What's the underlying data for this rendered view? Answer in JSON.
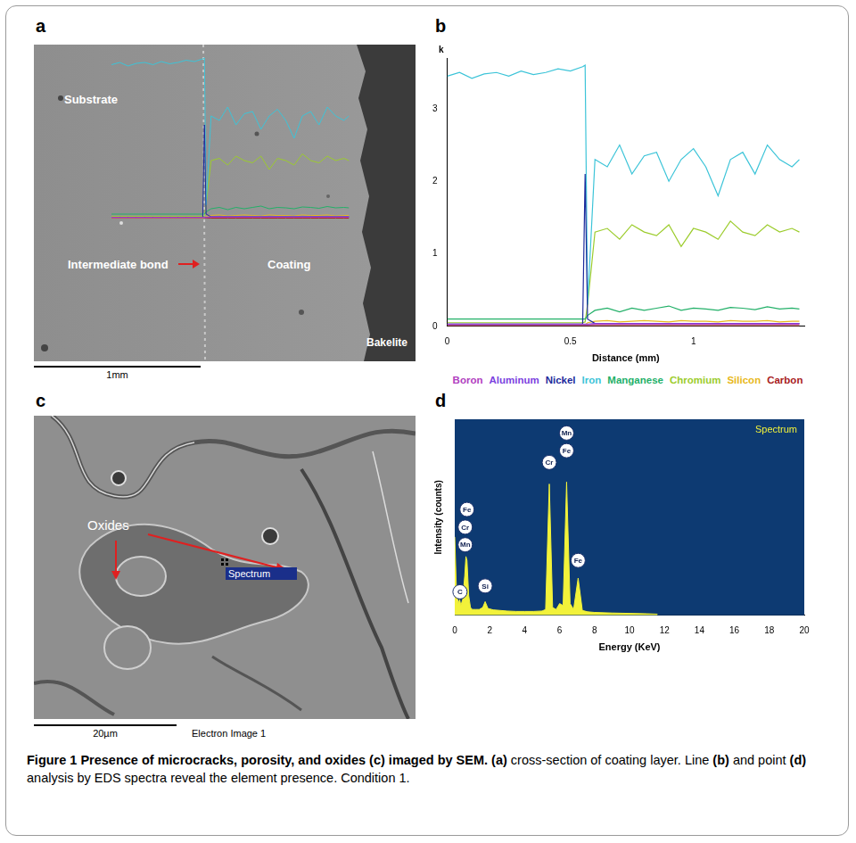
{
  "panels": {
    "a": {
      "label": "a",
      "substrate": "Substrate",
      "bond": "Intermediate bond",
      "coating": "Coating",
      "bakelite": "Bakelite",
      "scale_bar": "1mm"
    },
    "c": {
      "label": "c",
      "oxides": "Oxides",
      "spectrum_box": "Spectrum",
      "scale_bar": "20µm",
      "image_name": "Electron Image 1"
    }
  },
  "chart_data": [
    {
      "panel": "b",
      "type": "line",
      "x_label": "Distance (mm)",
      "y_label": "k",
      "x": [
        0,
        0.05,
        0.1,
        0.15,
        0.2,
        0.25,
        0.3,
        0.35,
        0.4,
        0.45,
        0.5,
        0.55,
        0.56,
        0.57,
        0.6,
        0.65,
        0.7,
        0.75,
        0.8,
        0.85,
        0.9,
        0.95,
        1.0,
        1.05,
        1.1,
        1.15,
        1.2,
        1.25,
        1.3,
        1.35,
        1.4,
        1.43
      ],
      "xlim": [
        0,
        1.45
      ],
      "xticks": [
        0,
        0.5,
        1
      ],
      "ylim": [
        0,
        3.7
      ],
      "yticks": [
        0,
        1,
        2,
        3
      ],
      "grid": false,
      "legend": "bottom",
      "series": [
        {
          "name": "Boron",
          "color": "#b040c0",
          "values": [
            0.02,
            0.02,
            0.02,
            0.02,
            0.02,
            0.02,
            0.02,
            0.02,
            0.02,
            0.02,
            0.02,
            0.02,
            0.02,
            0.02,
            0.03,
            0.03,
            0.03,
            0.03,
            0.03,
            0.03,
            0.03,
            0.03,
            0.03,
            0.03,
            0.03,
            0.03,
            0.03,
            0.03,
            0.03,
            0.03,
            0.03,
            0.03
          ]
        },
        {
          "name": "Aluminum",
          "color": "#7b3fe0",
          "values": [
            0.03,
            0.03,
            0.03,
            0.03,
            0.03,
            0.03,
            0.03,
            0.03,
            0.03,
            0.03,
            0.03,
            0.03,
            0.03,
            0.03,
            0.04,
            0.04,
            0.04,
            0.04,
            0.04,
            0.04,
            0.04,
            0.04,
            0.04,
            0.04,
            0.04,
            0.04,
            0.04,
            0.04,
            0.04,
            0.04,
            0.04,
            0.04
          ]
        },
        {
          "name": "Nickel",
          "color": "#1c2a9c",
          "values": [
            0.03,
            0.03,
            0.03,
            0.03,
            0.03,
            0.03,
            0.03,
            0.03,
            0.03,
            0.03,
            0.03,
            0.03,
            2.1,
            0.1,
            0.04,
            0.04,
            0.04,
            0.04,
            0.04,
            0.04,
            0.04,
            0.04,
            0.04,
            0.04,
            0.04,
            0.04,
            0.04,
            0.04,
            0.04,
            0.04,
            0.04,
            0.04
          ]
        },
        {
          "name": "Iron",
          "color": "#3cc4d8",
          "values": [
            3.45,
            3.5,
            3.42,
            3.48,
            3.5,
            3.45,
            3.52,
            3.47,
            3.5,
            3.55,
            3.52,
            3.58,
            3.6,
            0.3,
            2.3,
            2.2,
            2.5,
            2.1,
            2.35,
            2.4,
            2.0,
            2.3,
            2.45,
            2.2,
            1.8,
            2.3,
            2.4,
            2.1,
            2.5,
            2.3,
            2.2,
            2.3
          ]
        },
        {
          "name": "Manganese",
          "color": "#22b068",
          "values": [
            0.1,
            0.1,
            0.1,
            0.1,
            0.1,
            0.1,
            0.1,
            0.1,
            0.1,
            0.1,
            0.1,
            0.1,
            0.1,
            0.15,
            0.22,
            0.25,
            0.2,
            0.25,
            0.22,
            0.25,
            0.28,
            0.22,
            0.25,
            0.24,
            0.22,
            0.26,
            0.25,
            0.23,
            0.27,
            0.24,
            0.25,
            0.24
          ]
        },
        {
          "name": "Chromium",
          "color": "#9ccc2c",
          "values": [
            0.05,
            0.05,
            0.05,
            0.05,
            0.05,
            0.05,
            0.05,
            0.05,
            0.05,
            0.05,
            0.05,
            0.05,
            0.06,
            0.3,
            1.3,
            1.35,
            1.2,
            1.4,
            1.3,
            1.25,
            1.4,
            1.1,
            1.35,
            1.3,
            1.2,
            1.45,
            1.3,
            1.25,
            1.4,
            1.3,
            1.35,
            1.3
          ]
        },
        {
          "name": "Silicon",
          "color": "#e8b820",
          "values": [
            0.02,
            0.02,
            0.02,
            0.02,
            0.02,
            0.02,
            0.02,
            0.02,
            0.02,
            0.02,
            0.02,
            0.02,
            0.02,
            0.05,
            0.07,
            0.08,
            0.06,
            0.07,
            0.08,
            0.07,
            0.06,
            0.08,
            0.07,
            0.07,
            0.06,
            0.08,
            0.07,
            0.07,
            0.08,
            0.06,
            0.07,
            0.07
          ]
        },
        {
          "name": "Carbon",
          "color": "#a82020",
          "values": [
            0.01,
            0.01,
            0.01,
            0.01,
            0.01,
            0.01,
            0.01,
            0.01,
            0.01,
            0.01,
            0.01,
            0.01,
            0.01,
            0.01,
            0.01,
            0.01,
            0.01,
            0.01,
            0.01,
            0.01,
            0.01,
            0.01,
            0.01,
            0.01,
            0.01,
            0.01,
            0.01,
            0.01,
            0.01,
            0.01,
            0.01,
            0.01
          ]
        }
      ]
    },
    {
      "panel": "d",
      "type": "line",
      "x_label": "Energy (KeV)",
      "y_label": "Intensity (counts)",
      "x": [
        0,
        0.1,
        0.2,
        0.28,
        0.35,
        0.45,
        0.57,
        0.64,
        0.7,
        0.8,
        0.9,
        1.0,
        1.2,
        1.4,
        1.6,
        1.74,
        1.9,
        2.2,
        2.6,
        3,
        3.5,
        4,
        4.5,
        5,
        5.2,
        5.41,
        5.6,
        5.8,
        6,
        6.2,
        6.4,
        6.6,
        6.8,
        7.06,
        7.3,
        7.6,
        8,
        9,
        10,
        11,
        11.6
      ],
      "xlim": [
        0,
        20
      ],
      "xticks": [
        0,
        2,
        4,
        6,
        8,
        10,
        12,
        14,
        16,
        18,
        20
      ],
      "ylim": [
        0,
        1000
      ],
      "tick_labels": "x",
      "grid": false,
      "legend": "upper right",
      "series": [
        {
          "name": "Spectrum",
          "color": "#f2f23a",
          "values": [
            400,
            120,
            60,
            80,
            50,
            80,
            200,
            300,
            280,
            100,
            40,
            30,
            30,
            30,
            40,
            70,
            35,
            28,
            25,
            22,
            20,
            20,
            20,
            22,
            30,
            670,
            40,
            30,
            60,
            50,
            680,
            60,
            30,
            190,
            25,
            18,
            15,
            12,
            10,
            8,
            6
          ]
        }
      ],
      "annotations": [
        {
          "text": "Fe",
          "x": 0.7,
          "y": 540
        },
        {
          "text": "Cr",
          "x": 0.6,
          "y": 450
        },
        {
          "text": "Mn",
          "x": 0.6,
          "y": 360
        },
        {
          "text": "C",
          "x": 0.3,
          "y": 120
        },
        {
          "text": "Si",
          "x": 1.74,
          "y": 150
        },
        {
          "text": "Cr",
          "x": 5.41,
          "y": 780
        },
        {
          "text": "Fe",
          "x": 6.4,
          "y": 840
        },
        {
          "text": "Mn",
          "x": 6.4,
          "y": 930
        },
        {
          "text": "Fe",
          "x": 7.06,
          "y": 280
        }
      ]
    }
  ],
  "caption": [
    {
      "text": "Figure 1 Presence of microcracks, porosity, and oxides (c) imaged by SEM. ",
      "bold": true
    },
    {
      "text": "(a)",
      "bold": true
    },
    {
      "text": " cross-section of coating layer. Line ",
      "bold": false
    },
    {
      "text": "(b)",
      "bold": true
    },
    {
      "text": " and point ",
      "bold": false
    },
    {
      "text": "(d)",
      "bold": true
    },
    {
      "text": " analysis by EDS spectra reveal the element presence. Condition 1.",
      "bold": false
    }
  ]
}
